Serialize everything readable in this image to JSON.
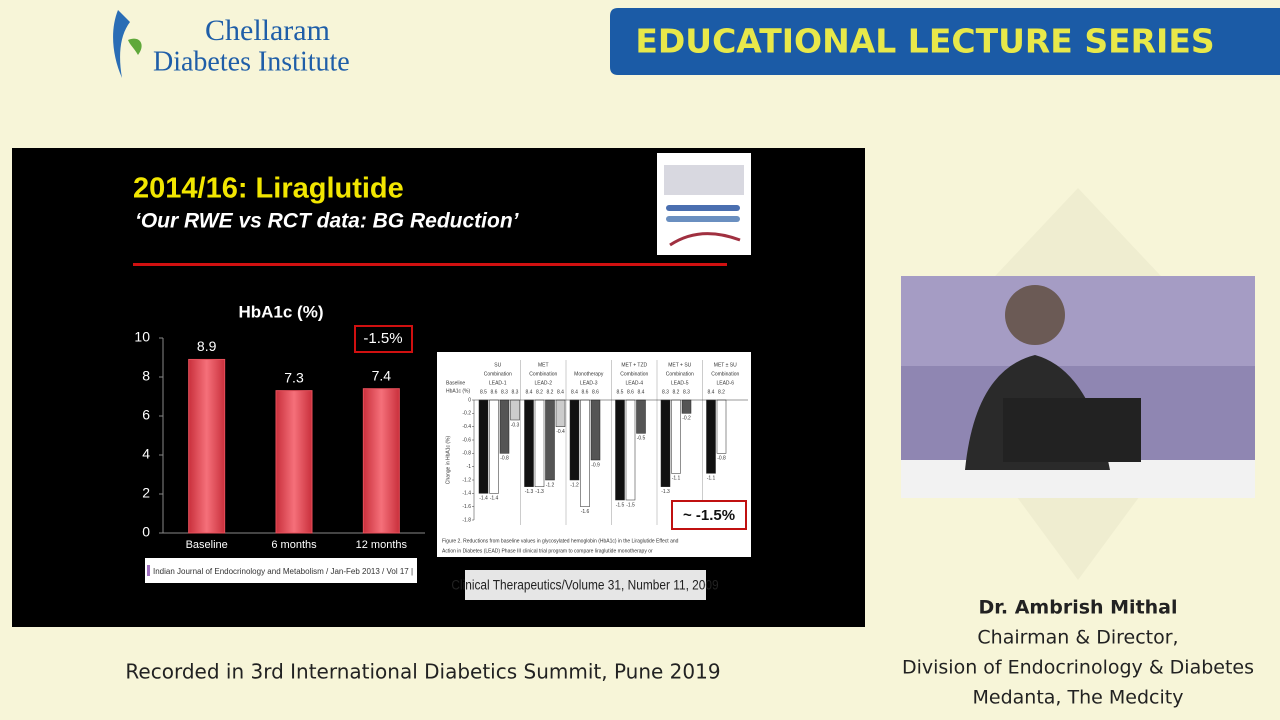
{
  "header": {
    "logo_line1": "Chellaram",
    "logo_line2": "Diabetes Institute",
    "banner": "EDUCATIONAL LECTURE SERIES"
  },
  "slide": {
    "title": "2014/16: Liraglutide",
    "subtitle": "‘Our RWE vs RCT data: BG Reduction’",
    "chart_data": {
      "type": "bar",
      "title": "HbA1c (%)",
      "categories": [
        "Baseline",
        "6 months",
        "12 months"
      ],
      "values": [
        8.9,
        7.3,
        7.4
      ],
      "color": "#e8505b",
      "ylim": [
        0,
        10
      ],
      "yticks": [
        0,
        2,
        4,
        6,
        8,
        10
      ],
      "annotation": "-1.5%"
    },
    "source": "Indian Journal of Endocrinology and Metabolism / Jan-Feb 2013 / Vol 17 |",
    "figure": {
      "type": "grouped-bar",
      "ylabel": "Change in HbA1c (%)",
      "baseline_label": [
        "Baseline",
        "HbA1c (%)"
      ],
      "ylim": [
        -1.8,
        0
      ],
      "yticks": [
        0,
        -0.2,
        -0.4,
        -0.6,
        -0.8,
        -1,
        -1.2,
        -1.4,
        -1.6,
        -1.8
      ],
      "colors": [
        "#111111",
        "#ffffff",
        "#555555",
        "#cccccc"
      ],
      "groups": [
        {
          "label": [
            "SU",
            "Combination",
            "LEAD-1"
          ],
          "baselines": [
            8.5,
            8.6,
            8.3,
            8.3
          ],
          "values": [
            -1.4,
            -1.4,
            -0.8,
            -0.3
          ]
        },
        {
          "label": [
            "MET",
            "Combination",
            "LEAD-2"
          ],
          "baselines": [
            8.4,
            8.2,
            8.2,
            8.4
          ],
          "values": [
            -1.3,
            -1.3,
            -1.2,
            -0.4
          ]
        },
        {
          "label": [
            "Monotherapy",
            "LEAD-3"
          ],
          "baselines": [
            8.4,
            8.6,
            8.6
          ],
          "values": [
            -1.2,
            -1.6,
            -0.9
          ]
        },
        {
          "label": [
            "MET + TZD",
            "Combination",
            "LEAD-4"
          ],
          "baselines": [
            8.5,
            8.6,
            8.4
          ],
          "values": [
            -1.5,
            -1.5,
            -0.5
          ]
        },
        {
          "label": [
            "MET + SU",
            "Combination",
            "LEAD-5"
          ],
          "baselines": [
            8.3,
            8.2,
            8.3
          ],
          "values": [
            -1.3,
            -1.1,
            -0.2
          ]
        },
        {
          "label": [
            "MET ± SU",
            "Combination",
            "LEAD-6"
          ],
          "baselines": [
            8.4,
            8.2
          ],
          "values": [
            -1.1,
            -0.8
          ]
        }
      ],
      "caption": [
        "Figure 2. Reductions from baseline values in glycosylated hemoglobin (HbA1c) in the Liraglutide Effect and",
        "Action in Diabetes (LEAD) Phase III clinical trial program to compare liraglutide monotherapy or"
      ],
      "annotation": "~ -1.5%"
    },
    "figure_source": "Clinical Therapeutics/Volume 31, Number 11, 2009"
  },
  "speaker": {
    "name": "Dr. Ambrish Mithal",
    "role": "Chairman & Director,",
    "division": "Division of Endocrinology & Diabetes",
    "hospital": "Medanta, The Medcity"
  },
  "footer": "Recorded in 3rd International Diabetics Summit, Pune 2019"
}
